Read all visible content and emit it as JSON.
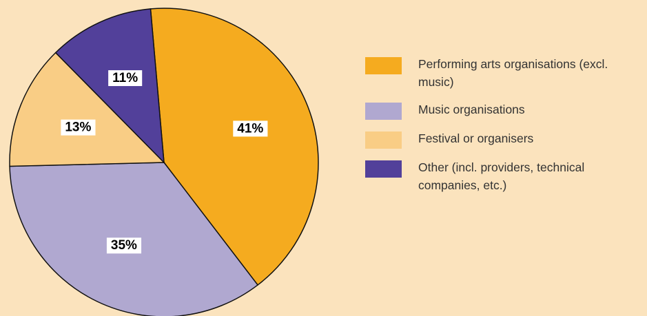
{
  "chart_data": {
    "type": "pie",
    "categories": [
      "Performing arts organisations (excl. music)",
      "Music organisations",
      "Festival or organisers",
      "Other (incl. providers, technical companies, etc.)"
    ],
    "values": [
      41,
      35,
      13,
      11
    ],
    "value_labels": [
      "41%",
      "35%",
      "13%",
      "11%"
    ],
    "colors": [
      "#f5ab1f",
      "#b0a8d0",
      "#f9cd85",
      "#52409a"
    ],
    "legend": "right"
  }
}
